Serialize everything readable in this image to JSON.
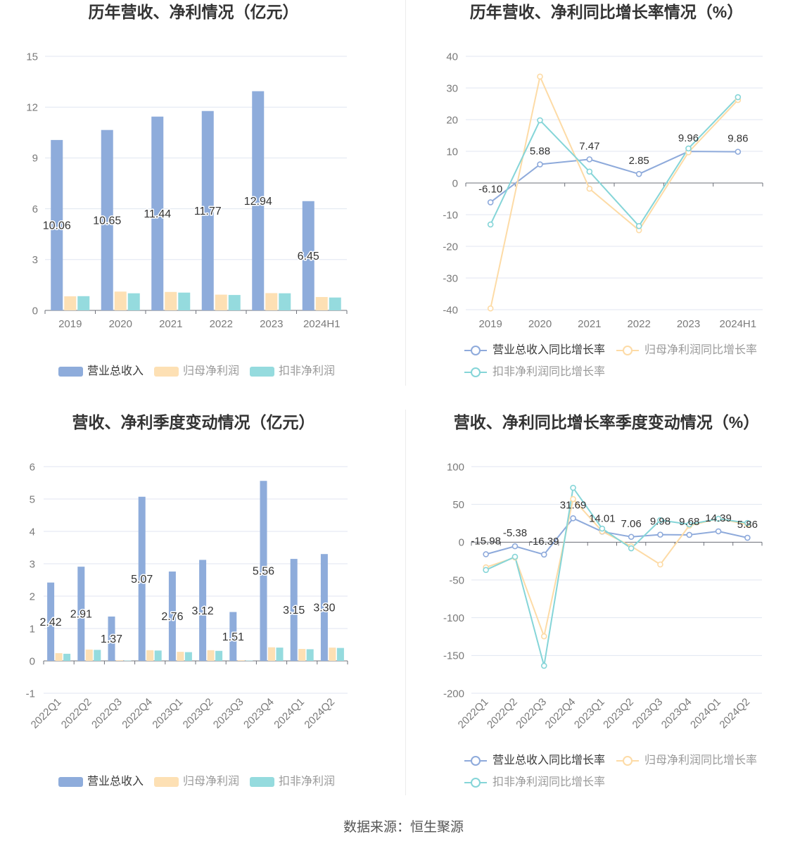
{
  "footer": {
    "source": "数据来源：恒生聚源"
  },
  "chart_data": [
    {
      "type": "bar",
      "title": "历年营收、净利情况（亿元）",
      "categories": [
        "2019",
        "2020",
        "2021",
        "2022",
        "2023",
        "2024H1"
      ],
      "ylim": [
        0,
        15
      ],
      "ystep": 3,
      "legend": "bottom",
      "label_decimals": 2,
      "series": [
        {
          "name": "营业总收入",
          "color": "#8eacdb",
          "values": [
            10.06,
            10.65,
            11.44,
            11.77,
            12.94,
            6.45
          ],
          "show_labels": true
        },
        {
          "name": "归母净利润",
          "color": "#fde0b4",
          "values": [
            0.83,
            1.11,
            1.09,
            0.93,
            1.02,
            0.79
          ],
          "show_labels": false
        },
        {
          "name": "扣非净利润",
          "color": "#95dbde",
          "values": [
            0.84,
            1.01,
            1.05,
            0.91,
            1.01,
            0.76
          ],
          "show_labels": false
        }
      ]
    },
    {
      "type": "line",
      "title": "历年营收、净利同比增长率情况（%）",
      "categories": [
        "2019",
        "2020",
        "2021",
        "2022",
        "2023",
        "2024H1"
      ],
      "ylim": [
        -40,
        40
      ],
      "ystep": 10,
      "legend": "bottom",
      "label_decimals": 2,
      "series": [
        {
          "name": "营业总收入同比增长率",
          "color": "#8eaadb",
          "values": [
            -6.1,
            5.88,
            7.47,
            2.85,
            9.96,
            9.86
          ],
          "show_labels": true
        },
        {
          "name": "归母净利润同比增长率",
          "color": "#fddba6",
          "values": [
            -39.6,
            33.6,
            -1.8,
            -14.9,
            9.7,
            26.2
          ],
          "show_labels": false
        },
        {
          "name": "扣非净利润同比增长率",
          "color": "#85d5d8",
          "values": [
            -13.1,
            19.8,
            3.6,
            -13.6,
            10.9,
            27.1
          ],
          "show_labels": false
        }
      ]
    },
    {
      "type": "bar",
      "title": "营收、净利季度变动情况（亿元）",
      "categories": [
        "2022Q1",
        "2022Q2",
        "2022Q3",
        "2022Q4",
        "2023Q1",
        "2023Q2",
        "2023Q3",
        "2023Q4",
        "2024Q1",
        "2024Q2"
      ],
      "ylim": [
        -1,
        6
      ],
      "ystep": 1,
      "legend": "bottom",
      "label_decimals": 2,
      "series": [
        {
          "name": "营业总收入",
          "color": "#8eacdb",
          "values": [
            2.42,
            2.91,
            1.37,
            5.07,
            2.76,
            3.12,
            1.51,
            5.56,
            3.15,
            3.3
          ],
          "show_labels": true
        },
        {
          "name": "归母净利润",
          "color": "#fde0b4",
          "values": [
            0.24,
            0.35,
            0.02,
            0.33,
            0.28,
            0.33,
            0.02,
            0.42,
            0.37,
            0.41
          ],
          "show_labels": false
        },
        {
          "name": "扣非净利润",
          "color": "#95dbde",
          "values": [
            0.22,
            0.34,
            0.01,
            0.32,
            0.27,
            0.31,
            0.01,
            0.41,
            0.36,
            0.4
          ],
          "show_labels": false
        }
      ]
    },
    {
      "type": "line",
      "title": "营收、净利同比增长率季度变动情况（%）",
      "categories": [
        "2022Q1",
        "2022Q2",
        "2022Q3",
        "2022Q4",
        "2023Q1",
        "2023Q2",
        "2023Q3",
        "2023Q4",
        "2024Q1",
        "2024Q2"
      ],
      "ylim": [
        -200,
        100
      ],
      "ystep": 50,
      "legend": "bottom",
      "label_decimals": 2,
      "series": [
        {
          "name": "营业总收入同比增长率",
          "color": "#8eaadb",
          "values": [
            -15.98,
            -5.38,
            -16.39,
            31.69,
            14.01,
            7.06,
            9.98,
            9.68,
            14.39,
            5.86
          ],
          "show_labels": true
        },
        {
          "name": "归母净利润同比增长率",
          "color": "#fddba6",
          "values": [
            -33.3,
            -20.2,
            -124.6,
            57.1,
            14.3,
            -5.3,
            -29.5,
            22.0,
            31.0,
            23.6
          ],
          "show_labels": false
        },
        {
          "name": "扣非净利润同比增长率",
          "color": "#85d5d8",
          "values": [
            -36.8,
            -19.3,
            -163.6,
            72.0,
            18.0,
            -8.1,
            29.2,
            23.6,
            31.0,
            25.4
          ],
          "show_labels": false
        }
      ]
    }
  ]
}
